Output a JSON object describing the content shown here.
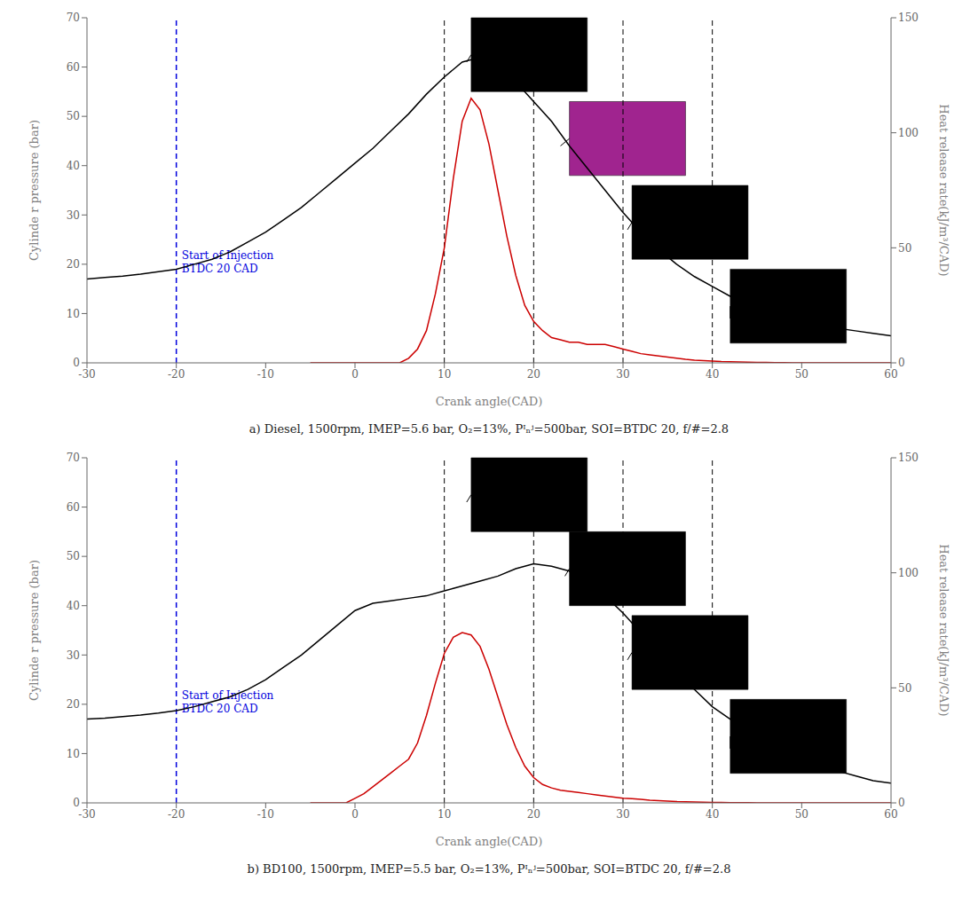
{
  "chart_data": [
    {
      "type": "line",
      "title": "a)  Diesel, 1500rpm, IMEP=5.6 bar, O₂=13%, Pᴵₙʲ=500bar, SOI=BTDC 20, f/#=2.8",
      "xlabel": "Crank angle(CAD)",
      "ylabel": "Cylinde r pressure (bar)",
      "y2label": "Heat release rate(kJ/m³/CAD)",
      "xlim": [
        -30,
        60
      ],
      "xticks": [
        -30,
        -20,
        -10,
        0,
        10,
        20,
        30,
        40,
        50,
        60
      ],
      "ylim": [
        0,
        70
      ],
      "yticks": [
        0,
        10,
        20,
        30,
        40,
        50,
        60,
        70
      ],
      "y2lim": [
        0,
        150
      ],
      "y2ticks": [
        0,
        50,
        100,
        150
      ],
      "grid": false,
      "series": [
        {
          "color": "#000000",
          "x": [
            -30,
            -28,
            -26,
            -24,
            -22,
            -20,
            -18,
            -16,
            -14,
            -12,
            -10,
            -8,
            -6,
            -4,
            -2,
            0,
            2,
            4,
            6,
            8,
            10,
            12,
            13,
            14,
            16,
            18,
            20,
            22,
            24,
            26,
            28,
            30,
            32,
            34,
            36,
            38,
            40,
            42,
            44,
            46,
            48,
            50,
            52,
            54,
            56,
            58,
            60
          ],
          "values": [
            17,
            17.3,
            17.6,
            18,
            18.5,
            19,
            20,
            21,
            22.5,
            24.5,
            26.5,
            29,
            31.5,
            34.5,
            37.5,
            40.5,
            43.5,
            47,
            50.5,
            54.5,
            58,
            61,
            61.5,
            61,
            59.5,
            57,
            53,
            49,
            44,
            39.5,
            35,
            30.5,
            26.5,
            23,
            20,
            17.5,
            15.5,
            13.5,
            12,
            10.5,
            9.5,
            8.5,
            7.5,
            7,
            6.5,
            6,
            5.5
          ]
        },
        {
          "color": "#cc0000",
          "axis": "y2",
          "x": [
            -5,
            -4,
            -3,
            -2,
            -1,
            0,
            1,
            2,
            3,
            4,
            5,
            6,
            7,
            8,
            9,
            10,
            11,
            12,
            13,
            14,
            15,
            16,
            17,
            18,
            19,
            20,
            21,
            22,
            23,
            24,
            25,
            26,
            27,
            28,
            29,
            30,
            31,
            32,
            33,
            34,
            35,
            36,
            37,
            38,
            39,
            40,
            41,
            42,
            43,
            44,
            45,
            46,
            47,
            48,
            49,
            50,
            55,
            60
          ],
          "values": [
            0,
            0,
            0,
            0,
            0,
            0,
            0,
            0,
            0,
            0,
            0,
            2,
            6,
            14,
            30,
            50,
            80,
            105,
            115,
            110,
            95,
            75,
            55,
            38,
            25,
            18,
            14,
            11,
            10,
            9,
            9,
            8,
            8,
            8,
            7,
            6,
            5,
            4,
            3.5,
            3,
            2.5,
            2,
            1.5,
            1.2,
            1,
            0.8,
            0.6,
            0.5,
            0.4,
            0.3,
            0.2,
            0.15,
            0.1,
            0.05,
            0.02,
            0.01,
            0,
            0
          ]
        }
      ],
      "vlines": [
        {
          "x": -20,
          "color": "#0000dd",
          "line_style": "dashed",
          "annotations": [
            "Start of Injection",
            "BTDC 20 CAD"
          ]
        },
        {
          "x": 10,
          "color": "#000000",
          "line_style": "dashed"
        },
        {
          "x": 20,
          "color": "#000000",
          "line_style": "dashed"
        },
        {
          "x": 30,
          "color": "#000000",
          "line_style": "dashed"
        },
        {
          "x": 40,
          "color": "#000000",
          "line_style": "dashed"
        }
      ],
      "boxes": [
        {
          "x1": 13,
          "y1": 55,
          "x2": 26,
          "y2": 70,
          "colorful": false,
          "arrow_x": 12.5,
          "arrow_y": 61
        },
        {
          "x1": 24,
          "y1": 38,
          "x2": 37,
          "y2": 53,
          "colorful": true,
          "arrow_x": 23,
          "arrow_y": 44
        },
        {
          "x1": 31,
          "y1": 21,
          "x2": 44,
          "y2": 36,
          "colorful": false,
          "arrow_x": 30.5,
          "arrow_y": 27
        },
        {
          "x1": 42,
          "y1": 4,
          "x2": 55,
          "y2": 19,
          "colorful": false,
          "arrow_x": 42,
          "arrow_y": 9
        }
      ]
    },
    {
      "type": "line",
      "title": "b)  BD100, 1500rpm, IMEP=5.5 bar, O₂=13%, Pᴵₙʲ=500bar, SOI=BTDC 20, f/#=2.8",
      "xlabel": "Crank angle(CAD)",
      "ylabel": "Cylinde r pressure (bar)",
      "y2label": "Heat release rate(kJ/m³/CAD)",
      "xlim": [
        -30,
        60
      ],
      "xticks": [
        -30,
        -20,
        -10,
        0,
        10,
        20,
        30,
        40,
        50,
        60
      ],
      "ylim": [
        0,
        70
      ],
      "yticks": [
        0,
        10,
        20,
        30,
        40,
        50,
        60,
        70
      ],
      "y2lim": [
        0,
        150
      ],
      "y2ticks": [
        0,
        50,
        100,
        150
      ],
      "grid": false,
      "series": [
        {
          "color": "#000000",
          "x": [
            -30,
            -28,
            -26,
            -24,
            -22,
            -20,
            -18,
            -16,
            -14,
            -12,
            -10,
            -8,
            -6,
            -4,
            -2,
            0,
            2,
            4,
            6,
            8,
            10,
            11,
            12,
            13,
            14,
            16,
            18,
            20,
            22,
            24,
            26,
            28,
            30,
            32,
            34,
            36,
            38,
            40,
            42,
            44,
            46,
            48,
            50,
            52,
            54,
            56,
            58,
            60
          ],
          "values": [
            17,
            17.2,
            17.5,
            17.8,
            18.2,
            18.7,
            19.5,
            20.5,
            21.5,
            23,
            25,
            27.5,
            30,
            33,
            36,
            39,
            40.5,
            41,
            41.5,
            42,
            43,
            43.5,
            44,
            44.5,
            45,
            46,
            47.5,
            48.5,
            48,
            47,
            45,
            42,
            38.5,
            34.5,
            30.5,
            26.5,
            23,
            19.5,
            17,
            14.5,
            12.5,
            10.5,
            9,
            7.5,
            6.5,
            5.5,
            4.5,
            4
          ]
        },
        {
          "color": "#cc0000",
          "axis": "y2",
          "x": [
            -5,
            -3,
            -2,
            -1,
            0,
            1,
            2,
            3,
            4,
            5,
            6,
            7,
            8,
            9,
            10,
            11,
            12,
            13,
            14,
            15,
            16,
            17,
            18,
            19,
            20,
            21,
            22,
            23,
            24,
            25,
            26,
            27,
            28,
            29,
            30,
            31,
            32,
            33,
            34,
            35,
            36,
            37,
            38,
            39,
            40,
            41,
            42,
            43,
            44,
            45,
            50,
            55,
            60
          ],
          "values": [
            0,
            0,
            0,
            0,
            2,
            4,
            7,
            10,
            13,
            16,
            19,
            26,
            38,
            52,
            65,
            72,
            74,
            73,
            68,
            58,
            46,
            34,
            24,
            16,
            11,
            8,
            6.5,
            5.5,
            5,
            4.5,
            4,
            3.5,
            3,
            2.5,
            2,
            1.8,
            1.5,
            1.2,
            1,
            0.8,
            0.6,
            0.5,
            0.4,
            0.3,
            0.2,
            0.15,
            0.1,
            0.08,
            0.05,
            0.02,
            0,
            0,
            0
          ]
        }
      ],
      "vlines": [
        {
          "x": -20,
          "color": "#0000dd",
          "line_style": "dashed",
          "annotations": [
            "Start of Injection",
            "BTDC 20 CAD"
          ]
        },
        {
          "x": 10,
          "color": "#000000",
          "line_style": "dashed"
        },
        {
          "x": 20,
          "color": "#000000",
          "line_style": "dashed"
        },
        {
          "x": 30,
          "color": "#000000",
          "line_style": "dashed"
        },
        {
          "x": 40,
          "color": "#000000",
          "line_style": "dashed"
        }
      ],
      "boxes": [
        {
          "x1": 13,
          "y1": 55,
          "x2": 26,
          "y2": 70,
          "colorful": false,
          "arrow_x": 12.5,
          "arrow_y": 61
        },
        {
          "x1": 24,
          "y1": 40,
          "x2": 37,
          "y2": 55,
          "colorful": false,
          "arrow_x": 23.5,
          "arrow_y": 46
        },
        {
          "x1": 31,
          "y1": 23,
          "x2": 44,
          "y2": 38,
          "colorful": false,
          "arrow_x": 30.5,
          "arrow_y": 29
        },
        {
          "x1": 42,
          "y1": 6,
          "x2": 55,
          "y2": 21,
          "colorful": false,
          "arrow_x": 42,
          "arrow_y": 11
        }
      ]
    }
  ]
}
